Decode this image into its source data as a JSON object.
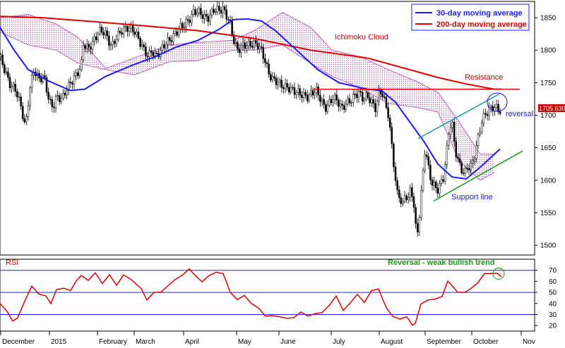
{
  "chart_data": [
    {
      "type": "candlestick",
      "title": "",
      "ylabel": "",
      "xlabel": "",
      "ylim": [
        1485,
        1875
      ],
      "y_ticks": [
        1500,
        1550,
        1600,
        1650,
        1700,
        1750,
        1800,
        1850
      ],
      "x_labels": [
        "December",
        "2015",
        "February",
        "March",
        "April",
        "May",
        "June",
        "July",
        "August",
        "September",
        "October",
        "Nov"
      ],
      "last_price_label": "1705.630",
      "grid": false,
      "legend": {
        "position": "top-right",
        "entries": [
          {
            "name": "30-day moving average",
            "color": "#1a1aff"
          },
          {
            "name": "200-day moving average",
            "color": "#e00000"
          }
        ]
      },
      "annotations": {
        "cloud": "Ichimoku Cloud",
        "resistance": "Resistance",
        "support": "Support line",
        "reversal": "reversal"
      },
      "resistance_level": 1740,
      "colors": {
        "ma30": "#1a1aff",
        "ma200": "#e00000",
        "cloud": "#c060c0",
        "support": "#1a9a1a",
        "trend": "#1a9a9a",
        "candle": "#000000"
      }
    },
    {
      "type": "line",
      "title": "RSI",
      "ylim": [
        15,
        80
      ],
      "y_ticks": [
        20,
        30,
        40,
        50,
        60,
        70
      ],
      "reference_lines": [
        70,
        50,
        30
      ],
      "annotation": "Reversal - weak bullish trend",
      "colors": {
        "rsi": "#e00000",
        "ref": "#1a1aff",
        "note": "#1a9a1a"
      }
    }
  ]
}
